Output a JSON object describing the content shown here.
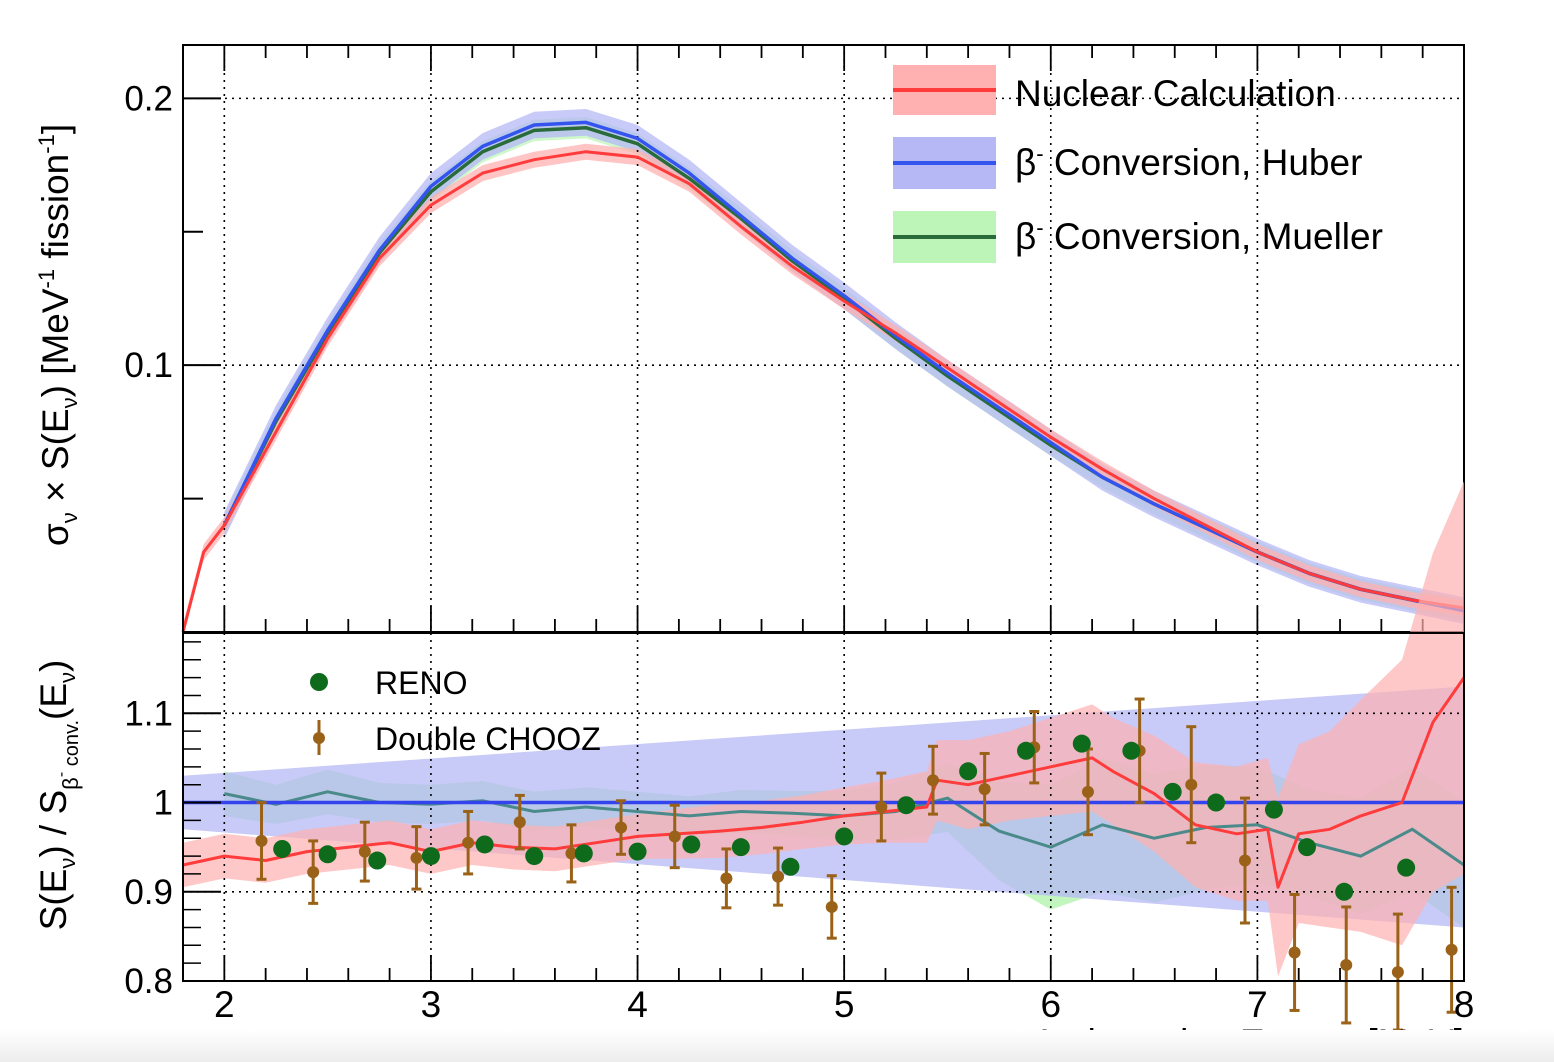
{
  "chart_data": [
    {
      "type": "line",
      "xlim": [
        1.8,
        8.0
      ],
      "ylim": [
        0.0,
        0.22
      ],
      "y_ticks": [
        {
          "value": 0.2,
          "label": "0.2"
        },
        {
          "value": 0.1,
          "label": "0.1"
        }
      ],
      "ylabel_parts": {
        "a": "σ",
        "b": "ν",
        "c": " × S(E",
        "d": "ν",
        "e": ") [MeV",
        "f": "-1",
        "g": " fission",
        "h": "-1",
        "i": "]"
      },
      "grid": true,
      "legend_position": "top-right",
      "legend": [
        {
          "prefix": "",
          "sup": "",
          "text": "Nuclear Calculation"
        },
        {
          "prefix": "β",
          "sup": "-",
          "text": " Conversion, Huber"
        },
        {
          "prefix": "β",
          "sup": "-",
          "text": " Conversion, Mueller"
        }
      ],
      "series": [
        {
          "name": "Nuclear Calculation",
          "color": "#ff3b3b",
          "band_color": "#ffb0b0",
          "x": [
            1.8,
            1.9,
            2.0,
            2.25,
            2.5,
            2.75,
            3.0,
            3.25,
            3.5,
            3.75,
            4.0,
            4.25,
            4.5,
            4.75,
            5.0,
            5.25,
            5.5,
            5.75,
            6.0,
            6.25,
            6.5,
            6.75,
            7.0,
            7.25,
            7.5,
            7.75,
            8.0
          ],
          "y": [
            0.0,
            0.03,
            0.04,
            0.075,
            0.11,
            0.14,
            0.16,
            0.172,
            0.177,
            0.18,
            0.178,
            0.168,
            0.152,
            0.137,
            0.124,
            0.112,
            0.099,
            0.086,
            0.073,
            0.061,
            0.05,
            0.04,
            0.03,
            0.022,
            0.016,
            0.012,
            0.009
          ],
          "band": 0.003
        },
        {
          "name": "β- Conversion, Huber",
          "color": "#3355ee",
          "band_color": "#b6b8f6",
          "x": [
            2.0,
            2.25,
            2.5,
            2.75,
            3.0,
            3.25,
            3.5,
            3.75,
            4.0,
            4.25,
            4.5,
            4.75,
            5.0,
            5.25,
            5.5,
            5.75,
            6.0,
            6.25,
            6.5,
            6.75,
            7.0,
            7.25,
            7.5,
            7.75,
            8.0
          ],
          "y": [
            0.04,
            0.08,
            0.113,
            0.143,
            0.167,
            0.182,
            0.19,
            0.191,
            0.185,
            0.172,
            0.156,
            0.14,
            0.126,
            0.111,
            0.097,
            0.084,
            0.071,
            0.058,
            0.048,
            0.039,
            0.03,
            0.022,
            0.016,
            0.012,
            0.008
          ],
          "band": 0.005
        },
        {
          "name": "β- Conversion, Mueller",
          "color": "#2a6b3a",
          "band_color": "#bdf5b8",
          "x": [
            2.0,
            2.25,
            2.5,
            2.75,
            3.0,
            3.25,
            3.5,
            3.75,
            4.0,
            4.25,
            4.5,
            4.75,
            5.0,
            5.25,
            5.5,
            5.75,
            6.0,
            6.25,
            6.5,
            6.75,
            7.0,
            7.25,
            7.5,
            7.75,
            8.0
          ],
          "y": [
            0.04,
            0.079,
            0.112,
            0.142,
            0.165,
            0.18,
            0.188,
            0.189,
            0.183,
            0.17,
            0.155,
            0.139,
            0.125,
            0.11,
            0.096,
            0.083,
            0.07,
            0.058,
            0.048,
            0.039,
            0.03,
            0.022,
            0.016,
            0.012,
            0.008
          ],
          "band": 0.004
        }
      ]
    },
    {
      "type": "scatter",
      "xlabel": "Antineutrino Energy [MeV]",
      "xlim": [
        1.8,
        8.0
      ],
      "ylim": [
        0.8,
        1.19
      ],
      "x_ticks": [
        {
          "value": 2,
          "label": "2"
        },
        {
          "value": 3,
          "label": "3"
        },
        {
          "value": 4,
          "label": "4"
        },
        {
          "value": 5,
          "label": "5"
        },
        {
          "value": 6,
          "label": "6"
        },
        {
          "value": 7,
          "label": "7"
        },
        {
          "value": 8,
          "label": "8"
        }
      ],
      "y_ticks": [
        {
          "value": 1.1,
          "label": "1.1"
        },
        {
          "value": 1.0,
          "label": "1"
        },
        {
          "value": 0.9,
          "label": "0.9"
        },
        {
          "value": 0.8,
          "label": "0.8"
        }
      ],
      "ylabel_parts": {
        "a": "S(E",
        "b": "ν",
        "c": ") / S",
        "d": "β",
        "e": "-",
        "f": " conv.",
        "g": "(E",
        "h": "ν",
        "i": ")"
      },
      "grid": true,
      "legend_position": "top-left",
      "legend": [
        {
          "text": "RENO",
          "marker": "circle"
        },
        {
          "text": "Double CHOOZ",
          "marker": "error-bar"
        }
      ],
      "ratio_bands": [
        {
          "name": "Mueller ratio",
          "color": "#4a8a8a",
          "band_color": "#bdf5b8",
          "x": [
            2.0,
            2.25,
            2.5,
            2.75,
            3.0,
            3.25,
            3.5,
            3.75,
            4.0,
            4.25,
            4.5,
            4.75,
            5.0,
            5.25,
            5.5,
            5.75,
            6.0,
            6.25,
            6.5,
            6.75,
            7.0,
            7.25,
            7.5,
            7.75,
            8.0
          ],
          "y": [
            1.01,
            0.998,
            1.012,
            1.0,
            0.998,
            1.002,
            0.99,
            0.995,
            0.99,
            0.985,
            0.99,
            0.988,
            0.985,
            0.99,
            1.005,
            0.968,
            0.95,
            0.975,
            0.96,
            0.972,
            0.975,
            0.955,
            0.94,
            0.97,
            0.93
          ],
          "band_half_width": [
            0.025,
            0.022,
            0.025,
            0.022,
            0.022,
            0.022,
            0.022,
            0.022,
            0.022,
            0.022,
            0.024,
            0.025,
            0.028,
            0.032,
            0.038,
            0.055,
            0.07,
            0.075,
            0.072,
            0.07,
            0.065,
            0.06,
            0.065,
            0.07,
            0.07
          ]
        },
        {
          "name": "Huber ratio",
          "color": "#3344ee",
          "band_color": "#b6b8f6",
          "x": [
            1.8,
            8.0
          ],
          "y": [
            1.0,
            1.0
          ],
          "band_half_lo": [
            0.03,
            0.14
          ],
          "band_half_hi": [
            0.03,
            0.13
          ]
        }
      ],
      "nuclear_ratio": {
        "name": "Nuclear Calculation ratio",
        "color": "#ff3b3b",
        "band_color": "#ffb0b0",
        "x": [
          1.8,
          2.0,
          2.2,
          2.4,
          2.6,
          2.8,
          3.0,
          3.2,
          3.4,
          3.6,
          3.8,
          4.0,
          4.2,
          4.4,
          4.6,
          4.8,
          5.0,
          5.2,
          5.4,
          5.45,
          5.6,
          5.8,
          6.0,
          6.2,
          6.3,
          6.5,
          6.7,
          6.9,
          7.05,
          7.1,
          7.2,
          7.35,
          7.5,
          7.7,
          7.85,
          8.0
        ],
        "y": [
          0.93,
          0.94,
          0.935,
          0.945,
          0.95,
          0.955,
          0.945,
          0.955,
          0.95,
          0.948,
          0.955,
          0.962,
          0.965,
          0.968,
          0.972,
          0.978,
          0.985,
          0.99,
          0.995,
          1.025,
          1.02,
          1.03,
          1.04,
          1.05,
          1.035,
          1.01,
          0.975,
          0.965,
          0.97,
          0.905,
          0.965,
          0.97,
          0.985,
          1.0,
          1.09,
          1.14
        ],
        "band_half_width": [
          0.025,
          0.025,
          0.025,
          0.025,
          0.025,
          0.025,
          0.025,
          0.025,
          0.025,
          0.025,
          0.025,
          0.025,
          0.028,
          0.03,
          0.03,
          0.03,
          0.032,
          0.035,
          0.04,
          0.045,
          0.05,
          0.05,
          0.055,
          0.06,
          0.06,
          0.065,
          0.07,
          0.075,
          0.08,
          0.1,
          0.1,
          0.11,
          0.13,
          0.16,
          0.19,
          0.22
        ]
      },
      "series": [
        {
          "name": "RENO",
          "color": "#0f6b1c",
          "x": [
            2.28,
            2.5,
            2.74,
            3.0,
            3.26,
            3.5,
            3.74,
            4.0,
            4.26,
            4.5,
            4.74,
            5.0,
            5.3,
            5.6,
            5.88,
            6.15,
            6.39,
            6.59,
            6.8,
            7.08,
            7.24,
            7.42,
            7.72
          ],
          "y": [
            0.948,
            0.942,
            0.935,
            0.94,
            0.953,
            0.94,
            0.943,
            0.945,
            0.953,
            0.95,
            0.928,
            0.962,
            0.997,
            1.035,
            1.058,
            1.066,
            1.058,
            1.012,
            1.0,
            0.992,
            0.95,
            0.9,
            0.927
          ]
        },
        {
          "name": "Double CHOOZ",
          "color": "#9a6218",
          "x": [
            2.18,
            2.43,
            2.68,
            2.93,
            3.18,
            3.43,
            3.68,
            3.92,
            4.18,
            4.43,
            4.68,
            4.94,
            5.18,
            5.43,
            5.68,
            5.92,
            6.18,
            6.43,
            6.68,
            6.94,
            7.18,
            7.43,
            7.68,
            7.94
          ],
          "y": [
            0.957,
            0.922,
            0.945,
            0.938,
            0.955,
            0.978,
            0.943,
            0.972,
            0.962,
            0.915,
            0.917,
            0.883,
            0.995,
            1.025,
            1.015,
            1.062,
            1.012,
            1.058,
            1.02,
            0.935,
            0.832,
            0.818,
            0.81,
            0.835
          ],
          "err": [
            0.043,
            0.035,
            0.033,
            0.035,
            0.035,
            0.03,
            0.032,
            0.03,
            0.035,
            0.033,
            0.032,
            0.035,
            0.038,
            0.038,
            0.04,
            0.04,
            0.048,
            0.058,
            0.065,
            0.07,
            0.065,
            0.065,
            0.065,
            0.07
          ]
        }
      ]
    }
  ]
}
